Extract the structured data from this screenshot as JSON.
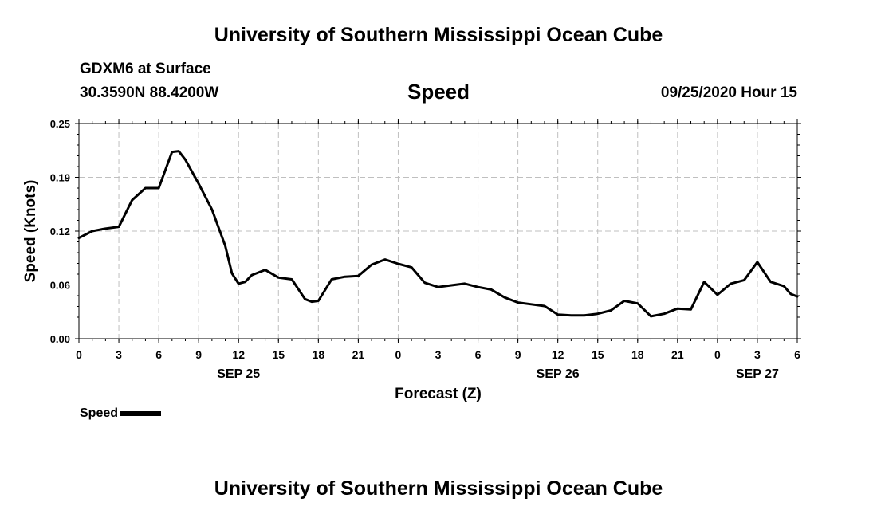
{
  "header": {
    "title": "University of Southern Mississippi Ocean Cube",
    "station": "GDXM6 at Surface",
    "coordinates": "30.3590N 88.4200W",
    "run_time": "09/25/2020 Hour 15"
  },
  "footer": {
    "title": "University of Southern Mississippi Ocean Cube"
  },
  "legend": {
    "label": "Speed",
    "color": "#000000"
  },
  "chart_data": {
    "type": "line",
    "title": "Speed",
    "xlabel": "Forecast (Z)",
    "ylabel": "Speed (Knots)",
    "xlim": [
      0,
      54
    ],
    "ylim": [
      0,
      0.25
    ],
    "yticks": [
      "0.00",
      "0.06",
      "0.12",
      "0.19",
      "0.25"
    ],
    "ytick_values": [
      0,
      0.0625,
      0.125,
      0.1875,
      0.25
    ],
    "xticks": [
      {
        "hour": 0,
        "label": "0"
      },
      {
        "hour": 3,
        "label": "3"
      },
      {
        "hour": 6,
        "label": "6"
      },
      {
        "hour": 9,
        "label": "9"
      },
      {
        "hour": 12,
        "label": "12"
      },
      {
        "hour": 15,
        "label": "15"
      },
      {
        "hour": 18,
        "label": "18"
      },
      {
        "hour": 21,
        "label": "21"
      },
      {
        "hour": 24,
        "label": "0"
      },
      {
        "hour": 27,
        "label": "3"
      },
      {
        "hour": 30,
        "label": "6"
      },
      {
        "hour": 33,
        "label": "9"
      },
      {
        "hour": 36,
        "label": "12"
      },
      {
        "hour": 39,
        "label": "15"
      },
      {
        "hour": 42,
        "label": "18"
      },
      {
        "hour": 45,
        "label": "21"
      },
      {
        "hour": 48,
        "label": "0"
      },
      {
        "hour": 51,
        "label": "3"
      },
      {
        "hour": 54,
        "label": "6"
      }
    ],
    "date_labels": [
      {
        "hour": 12,
        "label": "SEP 25"
      },
      {
        "hour": 36,
        "label": "SEP 26"
      },
      {
        "hour": 51,
        "label": "SEP 27"
      }
    ],
    "grid": true,
    "series": [
      {
        "name": "Speed",
        "color": "#000000",
        "x": [
          0,
          1,
          2,
          3,
          4,
          5,
          6,
          7,
          7.5,
          8,
          9,
          10,
          11,
          11.5,
          12,
          12.5,
          13,
          14,
          15,
          16,
          17,
          17.5,
          18,
          19,
          20,
          21,
          22,
          23,
          24,
          25,
          26,
          27,
          28,
          29,
          30,
          31,
          32,
          33,
          34,
          35,
          36,
          37,
          38,
          39,
          40,
          41,
          42,
          43,
          44,
          45,
          46,
          47,
          48,
          49,
          50,
          51,
          52,
          53,
          53.5,
          54
        ],
        "y": [
          0.117,
          0.125,
          0.128,
          0.13,
          0.161,
          0.175,
          0.175,
          0.217,
          0.218,
          0.208,
          0.18,
          0.15,
          0.108,
          0.076,
          0.064,
          0.066,
          0.074,
          0.08,
          0.071,
          0.069,
          0.046,
          0.043,
          0.044,
          0.069,
          0.072,
          0.073,
          0.086,
          0.092,
          0.087,
          0.083,
          0.065,
          0.06,
          0.062,
          0.064,
          0.06,
          0.057,
          0.048,
          0.042,
          0.04,
          0.038,
          0.028,
          0.027,
          0.027,
          0.029,
          0.033,
          0.044,
          0.041,
          0.026,
          0.029,
          0.035,
          0.034,
          0.066,
          0.051,
          0.064,
          0.068,
          0.089,
          0.066,
          0.061,
          0.052,
          0.049
        ]
      }
    ]
  }
}
